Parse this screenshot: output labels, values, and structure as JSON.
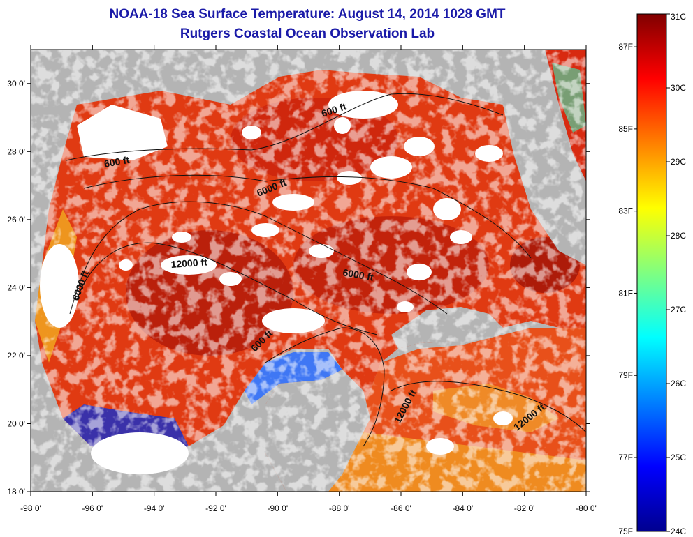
{
  "header": {
    "title": "NOAA-18 Sea Surface Temperature:  August 14, 2014 1028 GMT",
    "subtitle": "Rutgers Coastal Ocean Observation Lab"
  },
  "map": {
    "lon_range": [
      -98,
      -80
    ],
    "lat_range": [
      18,
      31
    ],
    "lon_labels": [
      "-98 0'",
      "-96 0'",
      "-94 0'",
      "-92 0'",
      "-90 0'",
      "-88 0'",
      "-86 0'",
      "-84 0'",
      "-82 0'",
      "-80 0'"
    ],
    "lat_labels": [
      "18 0'",
      "20 0'",
      "22 0'",
      "24 0'",
      "26 0'",
      "28 0'",
      "30 0'"
    ],
    "land_color": "#b4b4b4",
    "cloud_color": "#ffffff",
    "contour_labels": [
      "600 ft",
      "600 ft",
      "6000 ft",
      "12000 ft",
      "6000 ft",
      "6000 ft",
      "600 ft",
      "12000 ft",
      "12000 ft"
    ]
  },
  "colorbar": {
    "celsius_labels": [
      "31C",
      "30C",
      "29C",
      "28C",
      "27C",
      "26C",
      "25C",
      "24C"
    ],
    "fahrenheit_labels": [
      "87F",
      "85F",
      "83F",
      "81F",
      "79F",
      "77F",
      "75F"
    ],
    "range_c": [
      24,
      31
    ],
    "colors": [
      "#00008f",
      "#0000ff",
      "#0080ff",
      "#00ffff",
      "#80ff80",
      "#ffff00",
      "#ff8000",
      "#ff0000",
      "#800000"
    ]
  }
}
